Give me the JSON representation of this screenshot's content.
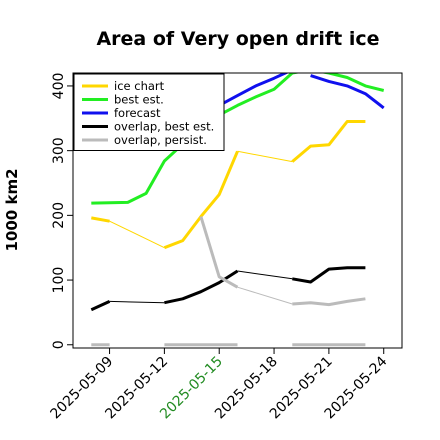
{
  "chart_data": {
    "type": "line",
    "title": "Area of Very open drift ice",
    "ylabel": "1000 km2",
    "xlabel": "",
    "xlim": [
      "2025-05-07",
      "2025-05-25"
    ],
    "ylim": [
      -5,
      420
    ],
    "yticks": [
      0,
      100,
      200,
      300,
      400
    ],
    "xticks": [
      {
        "date": "2025-05-09",
        "label": "2025-05-09",
        "color": "#000000"
      },
      {
        "date": "2025-05-12",
        "label": "2025-05-12",
        "color": "#000000"
      },
      {
        "date": "2025-05-15",
        "label": "2025-05-15",
        "color": "#228B22"
      },
      {
        "date": "2025-05-18",
        "label": "2025-05-18",
        "color": "#000000"
      },
      {
        "date": "2025-05-21",
        "label": "2025-05-21",
        "color": "#000000"
      },
      {
        "date": "2025-05-24",
        "label": "2025-05-24",
        "color": "#000000"
      }
    ],
    "legend_position": "top-left",
    "series": [
      {
        "name": "ice chart",
        "color": "#FFD700",
        "width": 3,
        "segments": [
          [
            [
              "2025-05-08",
              196
            ],
            [
              "2025-05-09",
              191
            ]
          ],
          [
            [
              "2025-05-12",
              150
            ],
            [
              "2025-05-13",
              161
            ],
            [
              "2025-05-14",
              198
            ],
            [
              "2025-05-15",
              232
            ],
            [
              "2025-05-16",
              299
            ]
          ],
          [
            [
              "2025-05-19",
              283
            ],
            [
              "2025-05-20",
              307
            ],
            [
              "2025-05-21",
              309
            ],
            [
              "2025-05-22",
              345
            ],
            [
              "2025-05-23",
              345
            ]
          ]
        ],
        "connectors": [
          [
            [
              "2025-05-09",
              191
            ],
            [
              "2025-05-12",
              150
            ]
          ],
          [
            [
              "2025-05-16",
              299
            ],
            [
              "2025-05-19",
              283
            ]
          ]
        ]
      },
      {
        "name": "best est.",
        "color": "#22EE22",
        "width": 3,
        "segments": [
          [
            [
              "2025-05-08",
              219
            ],
            [
              "2025-05-10",
              220
            ],
            [
              "2025-05-11",
              234
            ],
            [
              "2025-05-12",
              284
            ],
            [
              "2025-05-13",
              310
            ],
            [
              "2025-05-14",
              340
            ],
            [
              "2025-05-15",
              355
            ],
            [
              "2025-05-16",
              370
            ],
            [
              "2025-05-17",
              383
            ],
            [
              "2025-05-18",
              395
            ],
            [
              "2025-05-19",
              420
            ],
            [
              "2025-05-20",
              425
            ],
            [
              "2025-05-21",
              420
            ],
            [
              "2025-05-22",
              413
            ],
            [
              "2025-05-23",
              400
            ],
            [
              "2025-05-24",
              393
            ]
          ]
        ]
      },
      {
        "name": "forecast",
        "color": "#1010EE",
        "width": 3,
        "segments": [
          [
            [
              "2025-05-14",
              360
            ],
            [
              "2025-05-15",
              370
            ],
            [
              "2025-05-16",
              385
            ],
            [
              "2025-05-17",
              400
            ],
            [
              "2025-05-18",
              412
            ],
            [
              "2025-05-19",
              425
            ]
          ],
          [
            [
              "2025-05-20",
              416
            ],
            [
              "2025-05-21",
              407
            ],
            [
              "2025-05-22",
              400
            ],
            [
              "2025-05-23",
              388
            ],
            [
              "2025-05-24",
              366
            ]
          ]
        ]
      },
      {
        "name": "overlap, best est.",
        "color": "#000000",
        "width": 3,
        "segments": [
          [
            [
              "2025-05-08",
              54
            ],
            [
              "2025-05-09",
              67
            ]
          ],
          [
            [
              "2025-05-12",
              65
            ],
            [
              "2025-05-13",
              71
            ],
            [
              "2025-05-14",
              82
            ],
            [
              "2025-05-15",
              96
            ],
            [
              "2025-05-16",
              114
            ]
          ],
          [
            [
              "2025-05-19",
              102
            ],
            [
              "2025-05-20",
              97
            ],
            [
              "2025-05-21",
              117
            ],
            [
              "2025-05-22",
              119
            ],
            [
              "2025-05-23",
              119
            ]
          ]
        ],
        "connectors": [
          [
            [
              "2025-05-09",
              67
            ],
            [
              "2025-05-12",
              65
            ]
          ],
          [
            [
              "2025-05-16",
              114
            ],
            [
              "2025-05-19",
              102
            ]
          ]
        ]
      },
      {
        "name": "overlap, persist.",
        "color": "#BBBBBB",
        "width": 3,
        "segments": [
          [
            [
              "2025-05-14",
              198
            ],
            [
              "2025-05-15",
              105
            ],
            [
              "2025-05-16",
              89
            ]
          ],
          [
            [
              "2025-05-19",
              63
            ],
            [
              "2025-05-20",
              65
            ],
            [
              "2025-05-21",
              62
            ],
            [
              "2025-05-22",
              67
            ],
            [
              "2025-05-23",
              71
            ]
          ],
          [
            [
              "2025-05-08",
              0
            ],
            [
              "2025-05-09",
              0
            ]
          ],
          [
            [
              "2025-05-12",
              0
            ],
            [
              "2025-05-16",
              0
            ]
          ],
          [
            [
              "2025-05-19",
              0
            ],
            [
              "2025-05-23",
              0
            ]
          ]
        ],
        "connectors": [
          [
            [
              "2025-05-16",
              89
            ],
            [
              "2025-05-19",
              63
            ]
          ]
        ]
      }
    ]
  }
}
